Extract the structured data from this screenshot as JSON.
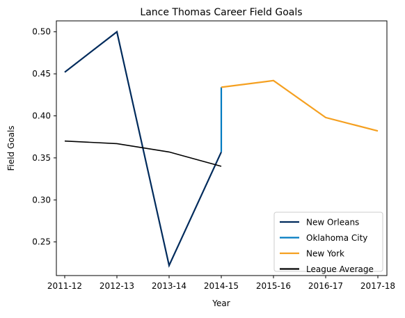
{
  "chart_data": {
    "type": "line",
    "title": "Lance Thomas Career Field Goals",
    "xlabel": "Year",
    "ylabel": "Field Goals",
    "categories": [
      "2011-12",
      "2012-13",
      "2013-14",
      "2014-15",
      "2015-16",
      "2016-17",
      "2017-18"
    ],
    "ylim": [
      0.21,
      0.513
    ],
    "yticks": [
      "0.25",
      "0.30",
      "0.35",
      "0.40",
      "0.45",
      "0.50"
    ],
    "grid": false,
    "legend_position": "lower-right",
    "series": [
      {
        "name": "New Orleans",
        "color": "#002b5c",
        "points": [
          [
            "2011-12",
            0.452
          ],
          [
            "2012-13",
            0.5
          ],
          [
            "2013-14",
            0.222
          ],
          [
            "2014-15",
            0.357
          ]
        ]
      },
      {
        "name": "Oklahoma City",
        "color": "#007ac1",
        "points": [
          [
            "2014-15",
            0.357
          ],
          [
            "2014-15",
            0.434
          ]
        ]
      },
      {
        "name": "New York",
        "color": "#f5a020",
        "points": [
          [
            "2014-15",
            0.434
          ],
          [
            "2015-16",
            0.442
          ],
          [
            "2016-17",
            0.398
          ],
          [
            "2017-18",
            0.382
          ]
        ]
      },
      {
        "name": "League Average",
        "color": "#000000",
        "points": [
          [
            "2011-12",
            0.37
          ],
          [
            "2012-13",
            0.367
          ],
          [
            "2013-14",
            0.357
          ],
          [
            "2014-15",
            0.34
          ]
        ]
      }
    ]
  }
}
